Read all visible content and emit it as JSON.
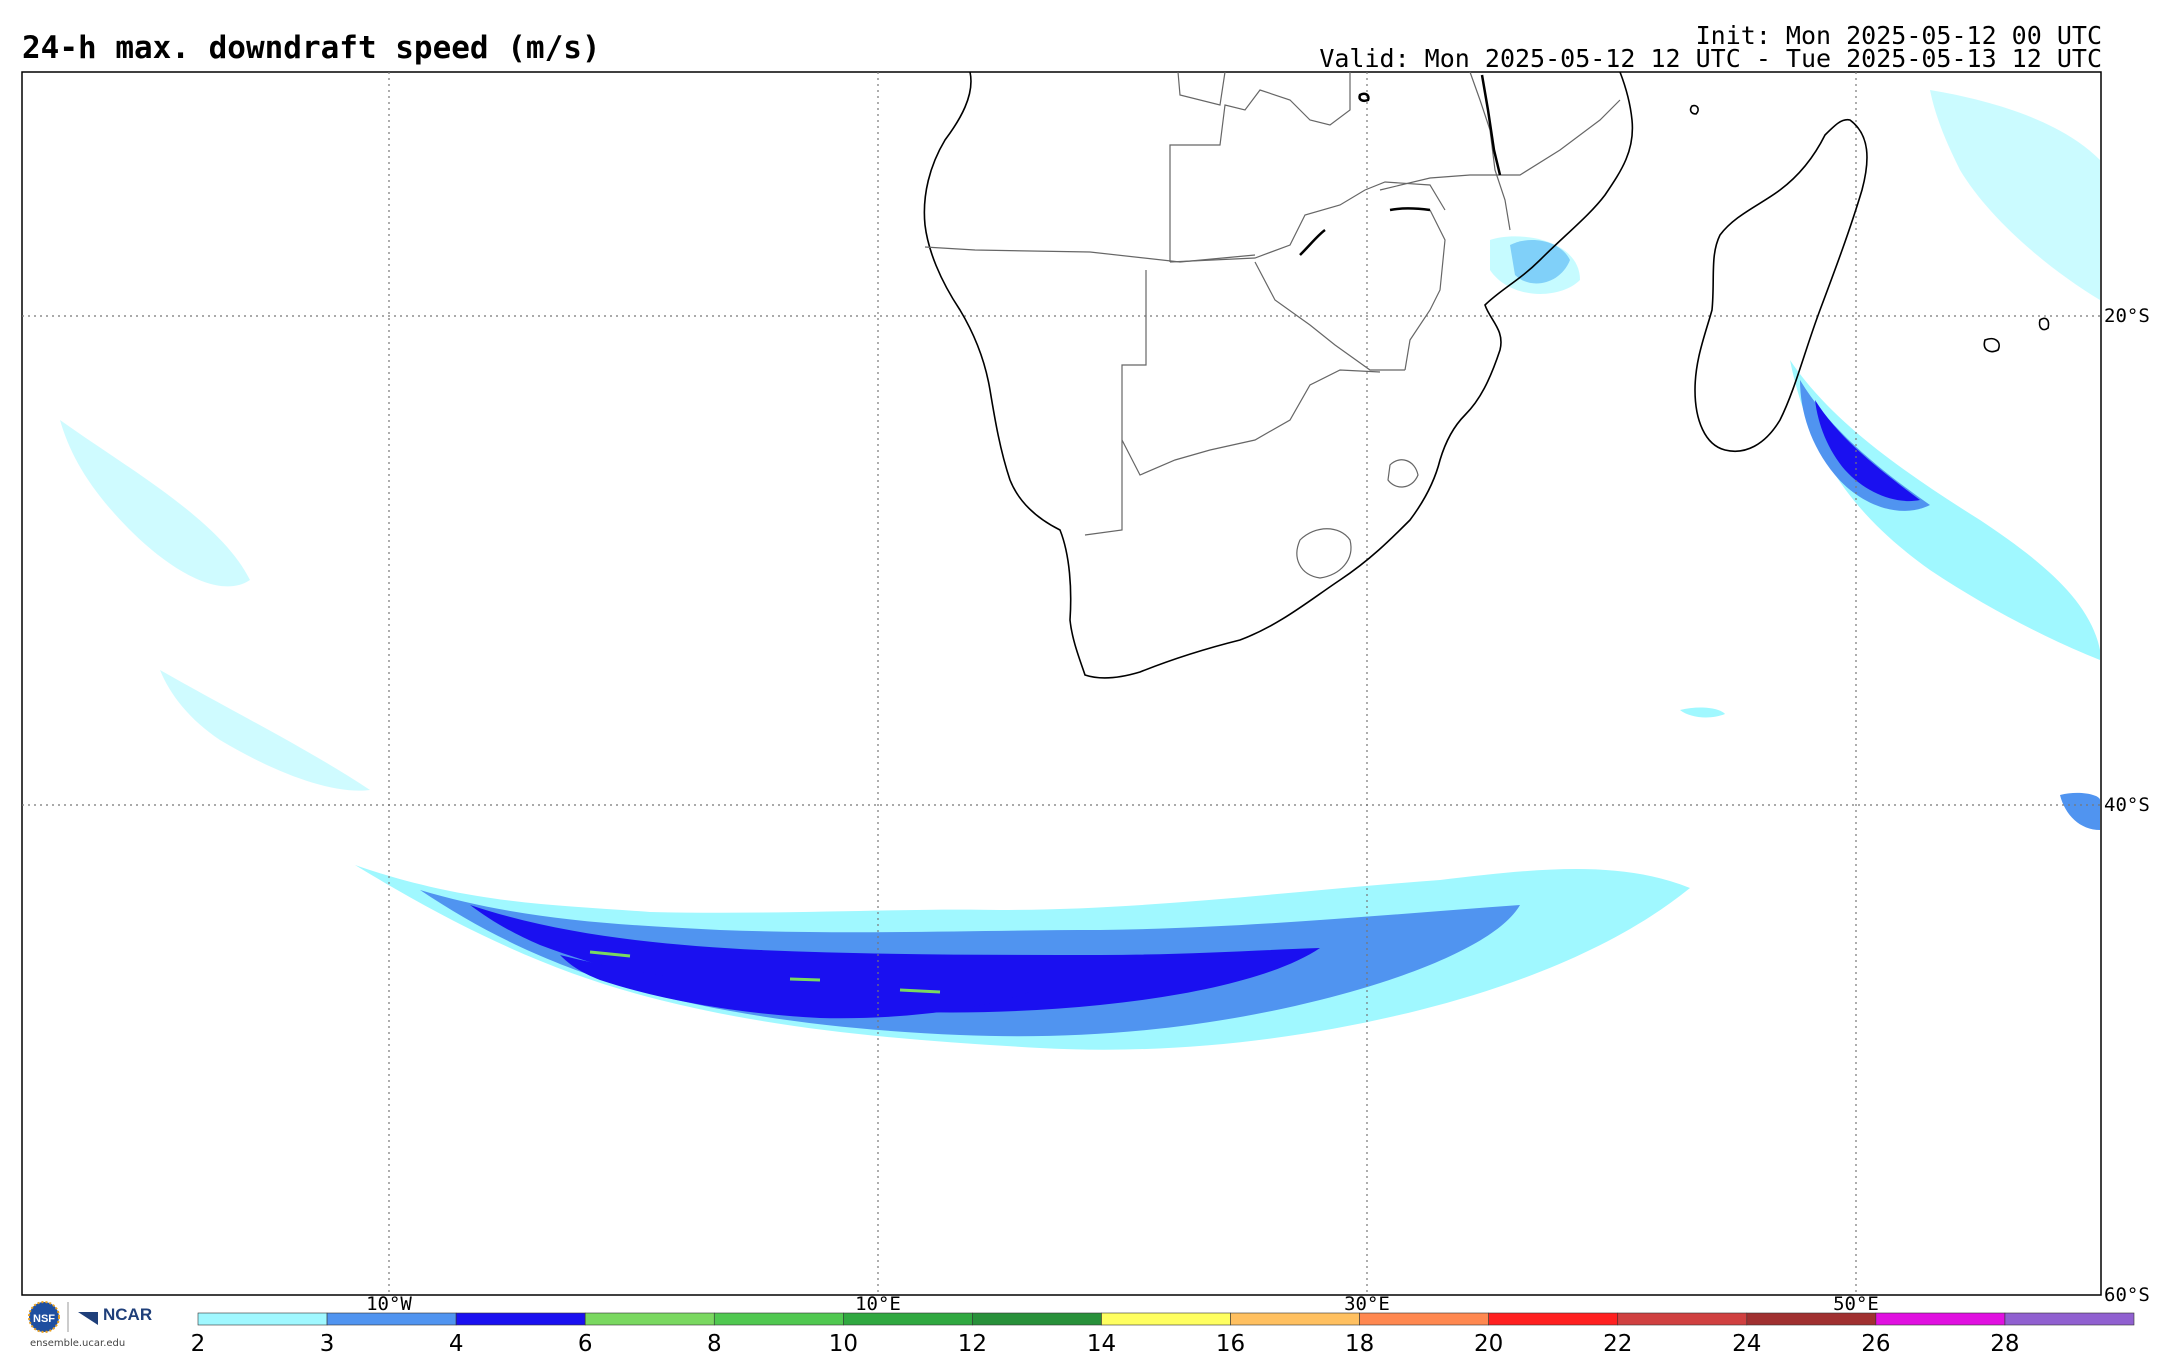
{
  "header": {
    "title": "24-h max. downdraft speed (m/s)",
    "init": "Init: Mon 2025-05-12 00 UTC",
    "valid": "Valid: Mon 2025-05-12 12 UTC - Tue 2025-05-13 12 UTC"
  },
  "map": {
    "lon_labels": [
      "10°W",
      "10°E",
      "30°E",
      "50°E"
    ],
    "lat_labels": [
      "20°S",
      "40°S",
      "60°S"
    ],
    "gridlines": "dotted"
  },
  "colorbar": {
    "ticks": [
      "2",
      "3",
      "4",
      "6",
      "8",
      "10",
      "12",
      "14",
      "16",
      "18",
      "20",
      "22",
      "24",
      "26",
      "28"
    ],
    "colors": [
      "#a0f8ff",
      "#5094f0",
      "#1a10f0",
      "#7ad860",
      "#50c850",
      "#30a840",
      "#28903a",
      "#ffff60",
      "#ffc060",
      "#ff8850",
      "#ff2020",
      "#d04040",
      "#a03030",
      "#e010e0",
      "#9060d0"
    ]
  },
  "logo": {
    "org1": "NSF",
    "org2": "NCAR",
    "url": "ensemble.ucar.edu"
  },
  "field_colors": {
    "light": "#a0f8ff",
    "mid": "#5094f0",
    "dark": "#1a10f0",
    "green": "#7ad860"
  }
}
